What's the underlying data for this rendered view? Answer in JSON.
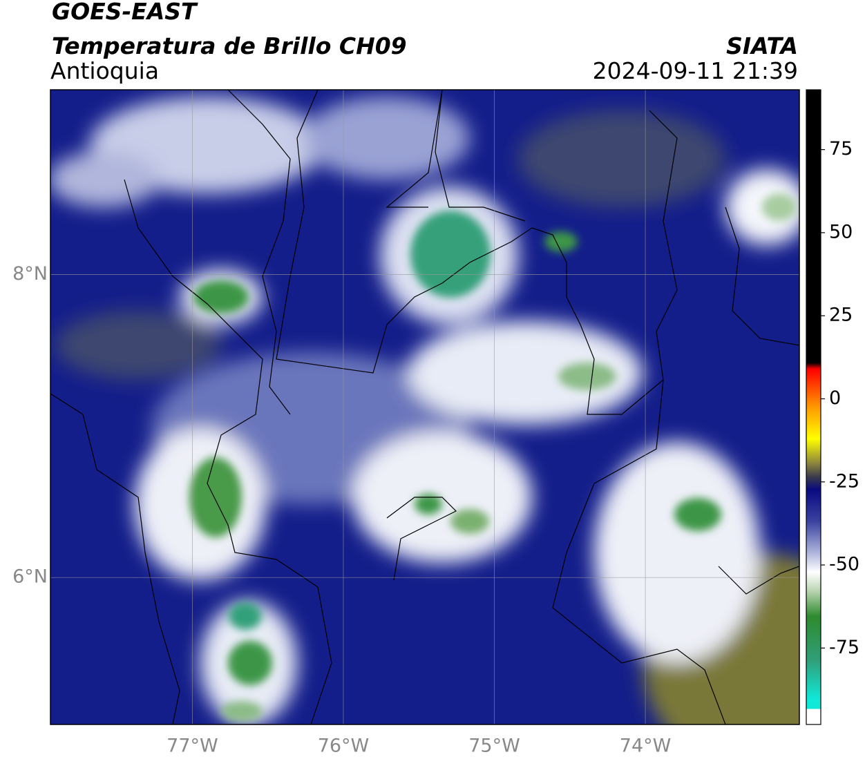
{
  "header": {
    "satellite": "GOES-EAST",
    "product": "Temperatura de Brillo CH09",
    "region": "Antioquia",
    "source": "SIATA",
    "datetime": "2024-09-11 21:39"
  },
  "map": {
    "xlim": [
      -77.94,
      -72.98
    ],
    "ylim": [
      5.03,
      9.22
    ],
    "xticks": [
      {
        "value": -77,
        "label": "77°W"
      },
      {
        "value": -76,
        "label": "76°W"
      },
      {
        "value": -75,
        "label": "75°W"
      },
      {
        "value": -74,
        "label": "74°W"
      }
    ],
    "yticks": [
      {
        "value": 8,
        "label": "8°N"
      },
      {
        "value": 6,
        "label": "6°N"
      }
    ],
    "grid": true
  },
  "colorbar": {
    "lim": [
      -98,
      93
    ],
    "ticks": [
      75,
      50,
      25,
      0,
      -25,
      -50,
      -75
    ]
  }
}
